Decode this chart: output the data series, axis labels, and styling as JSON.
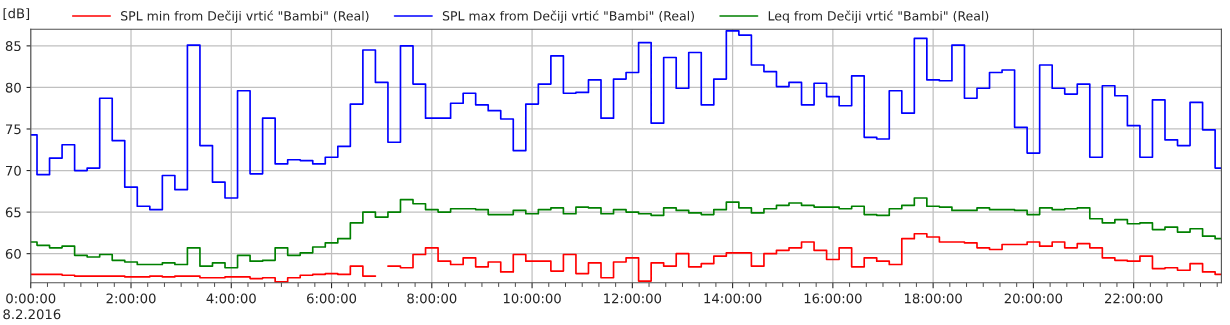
{
  "chart_data": {
    "type": "step",
    "ylabel": "[dB]",
    "annotations": [
      "8.2.2016"
    ],
    "x": [
      0,
      0.25,
      0.5,
      0.75,
      1,
      1.25,
      1.5,
      1.75,
      2,
      2.25,
      2.5,
      2.75,
      3,
      3.25,
      3.5,
      3.75,
      4,
      4.25,
      4.5,
      4.75,
      5,
      5.25,
      5.5,
      5.75,
      6,
      6.25,
      6.5,
      6.75,
      7,
      7.25,
      7.5,
      7.75,
      8,
      8.25,
      8.5,
      8.75,
      9,
      9.25,
      9.5,
      9.75,
      10,
      10.25,
      10.5,
      10.75,
      11,
      11.25,
      11.5,
      11.75,
      12,
      12.25,
      12.5,
      12.75,
      13,
      13.25,
      13.5,
      13.75,
      14,
      14.25,
      14.5,
      14.75,
      15,
      15.25,
      15.5,
      15.75,
      16,
      16.25,
      16.5,
      16.75,
      17,
      17.25,
      17.5,
      17.75,
      18,
      18.25,
      18.5,
      18.75,
      19,
      19.25,
      19.5,
      19.75,
      20,
      20.25,
      20.5,
      20.75,
      21,
      21.25,
      21.5,
      21.75,
      22,
      22.25,
      22.5,
      22.75,
      23,
      23.25,
      23.5,
      23.75
    ],
    "series": [
      {
        "name": "SPL min from Dečiji vrtić \"Bambi\" (Real)",
        "color": "#ff0000",
        "values": [
          57.5,
          57.5,
          57.5,
          57.4,
          57.3,
          57.3,
          57.3,
          57.3,
          57.2,
          57.2,
          57.3,
          57.2,
          57.3,
          57.3,
          57.1,
          57.1,
          57.2,
          57.2,
          57.0,
          57.1,
          56.6,
          57.1,
          57.4,
          57.5,
          57.6,
          57.5,
          58.5,
          57.3,
          null,
          58.5,
          58.3,
          59.9,
          60.7,
          59.1,
          58.7,
          59.5,
          58.4,
          59.0,
          57.8,
          59.9,
          59.1,
          59.1,
          57.9,
          59.9,
          57.6,
          58.9,
          57.1,
          59.0,
          59.5,
          56.7,
          58.9,
          58.5,
          60.0,
          58.4,
          58.8,
          59.7,
          60.1,
          60.1,
          58.5,
          60.0,
          60.4,
          60.7,
          61.4,
          60.4,
          59.3,
          60.7,
          58.4,
          59.5,
          59.1,
          58.7,
          61.8,
          62.4,
          62.0,
          61.4,
          61.4,
          61.3,
          60.7,
          60.5,
          61.1,
          61.1,
          61.4,
          60.9,
          61.4,
          60.7,
          61.2,
          60.7,
          59.5,
          59.2,
          59.1,
          59.7,
          58.2,
          58.3,
          58.0,
          58.8,
          57.8,
          57.5
        ]
      },
      {
        "name": "SPL max from Dečiji vrtić \"Bambi\" (Real)",
        "color": "#0000ff",
        "values": [
          74.3,
          69.5,
          71.5,
          73.1,
          70.0,
          70.3,
          78.7,
          73.6,
          68.0,
          65.7,
          65.3,
          69.4,
          67.7,
          85.1,
          73.0,
          68.6,
          66.7,
          79.6,
          69.6,
          76.3,
          70.8,
          71.3,
          71.2,
          70.8,
          71.6,
          72.9,
          78.0,
          84.5,
          80.6,
          73.4,
          85.0,
          80.4,
          76.3,
          76.3,
          78.1,
          79.3,
          77.9,
          77.2,
          76.2,
          72.4,
          78.0,
          80.4,
          83.8,
          79.3,
          79.4,
          80.9,
          76.3,
          81.0,
          81.8,
          85.4,
          75.7,
          83.6,
          79.9,
          84.2,
          77.9,
          81.0,
          86.8,
          86.3,
          82.7,
          81.9,
          80.1,
          80.6,
          77.9,
          80.5,
          78.9,
          77.8,
          81.4,
          74.0,
          73.8,
          79.6,
          76.9,
          85.9,
          80.9,
          80.8,
          85.1,
          78.7,
          79.9,
          81.8,
          82.1,
          75.2,
          72.1,
          82.7,
          79.9,
          79.2,
          80.4,
          71.6,
          80.2,
          79.0,
          75.4,
          71.6,
          78.5,
          73.7,
          73.0,
          78.2,
          74.9,
          70.3
        ]
      },
      {
        "name": "Leq from Dečiji vrtić \"Bambi\" (Real)",
        "color": "#008000",
        "values": [
          61.4,
          61.0,
          60.7,
          60.9,
          59.8,
          59.6,
          59.9,
          59.2,
          59.0,
          58.7,
          58.7,
          58.9,
          58.7,
          60.7,
          58.5,
          58.9,
          58.3,
          59.8,
          59.1,
          59.2,
          60.7,
          59.8,
          60.1,
          60.8,
          61.3,
          61.8,
          63.7,
          65.0,
          64.4,
          65.0,
          66.5,
          66.0,
          65.3,
          65.0,
          65.4,
          65.4,
          65.3,
          64.7,
          64.7,
          65.2,
          64.8,
          65.3,
          65.5,
          64.8,
          65.6,
          65.5,
          64.8,
          65.3,
          65.0,
          64.8,
          64.6,
          65.5,
          65.2,
          64.9,
          64.7,
          65.3,
          66.2,
          65.5,
          64.9,
          65.4,
          65.8,
          66.1,
          65.8,
          65.6,
          65.6,
          65.4,
          65.7,
          64.7,
          64.6,
          65.4,
          65.8,
          66.7,
          65.7,
          65.6,
          65.2,
          65.2,
          65.5,
          65.3,
          65.3,
          65.2,
          64.7,
          65.5,
          65.3,
          65.4,
          65.5,
          64.2,
          63.7,
          64.1,
          63.6,
          63.7,
          62.9,
          63.2,
          62.6,
          63.0,
          62.1,
          61.8
        ]
      }
    ],
    "xlim": [
      0,
      23.75
    ],
    "ylim": [
      56.5,
      87
    ],
    "xticks": [
      {
        "value": 0,
        "label": "0:00:00"
      },
      {
        "value": 0.3333,
        "label": null
      },
      {
        "value": 0.6667,
        "label": null
      },
      {
        "value": 1,
        "label": null
      },
      {
        "value": 1.3333,
        "label": null
      },
      {
        "value": 1.6667,
        "label": null
      },
      {
        "value": 2,
        "label": "2:00:00"
      },
      {
        "value": 2.3333,
        "label": null
      },
      {
        "value": 2.6667,
        "label": null
      },
      {
        "value": 3,
        "label": null
      },
      {
        "value": 3.3333,
        "label": null
      },
      {
        "value": 3.6667,
        "label": null
      },
      {
        "value": 4,
        "label": "4:00:00"
      },
      {
        "value": 4.3333,
        "label": null
      },
      {
        "value": 4.6667,
        "label": null
      },
      {
        "value": 5,
        "label": null
      },
      {
        "value": 5.3333,
        "label": null
      },
      {
        "value": 5.6667,
        "label": null
      },
      {
        "value": 6,
        "label": "6:00:00"
      },
      {
        "value": 6.3333,
        "label": null
      },
      {
        "value": 6.6667,
        "label": null
      },
      {
        "value": 7,
        "label": null
      },
      {
        "value": 7.3333,
        "label": null
      },
      {
        "value": 7.6667,
        "label": null
      },
      {
        "value": 8,
        "label": "8:00:00"
      },
      {
        "value": 8.3333,
        "label": null
      },
      {
        "value": 8.6667,
        "label": null
      },
      {
        "value": 9,
        "label": null
      },
      {
        "value": 9.3333,
        "label": null
      },
      {
        "value": 9.6667,
        "label": null
      },
      {
        "value": 10,
        "label": "10:00:00"
      },
      {
        "value": 10.3333,
        "label": null
      },
      {
        "value": 10.6667,
        "label": null
      },
      {
        "value": 11,
        "label": null
      },
      {
        "value": 11.3333,
        "label": null
      },
      {
        "value": 11.6667,
        "label": null
      },
      {
        "value": 12,
        "label": "12:00:00"
      },
      {
        "value": 12.3333,
        "label": null
      },
      {
        "value": 12.6667,
        "label": null
      },
      {
        "value": 13,
        "label": null
      },
      {
        "value": 13.3333,
        "label": null
      },
      {
        "value": 13.6667,
        "label": null
      },
      {
        "value": 14,
        "label": "14:00:00"
      },
      {
        "value": 14.3333,
        "label": null
      },
      {
        "value": 14.6667,
        "label": null
      },
      {
        "value": 15,
        "label": null
      },
      {
        "value": 15.3333,
        "label": null
      },
      {
        "value": 15.6667,
        "label": null
      },
      {
        "value": 16,
        "label": "16:00:00"
      },
      {
        "value": 16.3333,
        "label": null
      },
      {
        "value": 16.6667,
        "label": null
      },
      {
        "value": 17,
        "label": null
      },
      {
        "value": 17.3333,
        "label": null
      },
      {
        "value": 17.6667,
        "label": null
      },
      {
        "value": 18,
        "label": "18:00:00"
      },
      {
        "value": 18.3333,
        "label": null
      },
      {
        "value": 18.6667,
        "label": null
      },
      {
        "value": 19,
        "label": null
      },
      {
        "value": 19.3333,
        "label": null
      },
      {
        "value": 19.6667,
        "label": null
      },
      {
        "value": 20,
        "label": "20:00:00"
      },
      {
        "value": 20.3333,
        "label": null
      },
      {
        "value": 20.6667,
        "label": null
      },
      {
        "value": 21,
        "label": null
      },
      {
        "value": 21.3333,
        "label": null
      },
      {
        "value": 21.6667,
        "label": null
      },
      {
        "value": 22,
        "label": "22:00:00"
      },
      {
        "value": 22.3333,
        "label": null
      },
      {
        "value": 22.6667,
        "label": null
      },
      {
        "value": 23,
        "label": null
      },
      {
        "value": 23.3333,
        "label": null
      },
      {
        "value": 23.6667,
        "label": null
      }
    ],
    "yticks": [
      60,
      65,
      70,
      75,
      80,
      85
    ],
    "grid": true,
    "legend": "top left"
  }
}
